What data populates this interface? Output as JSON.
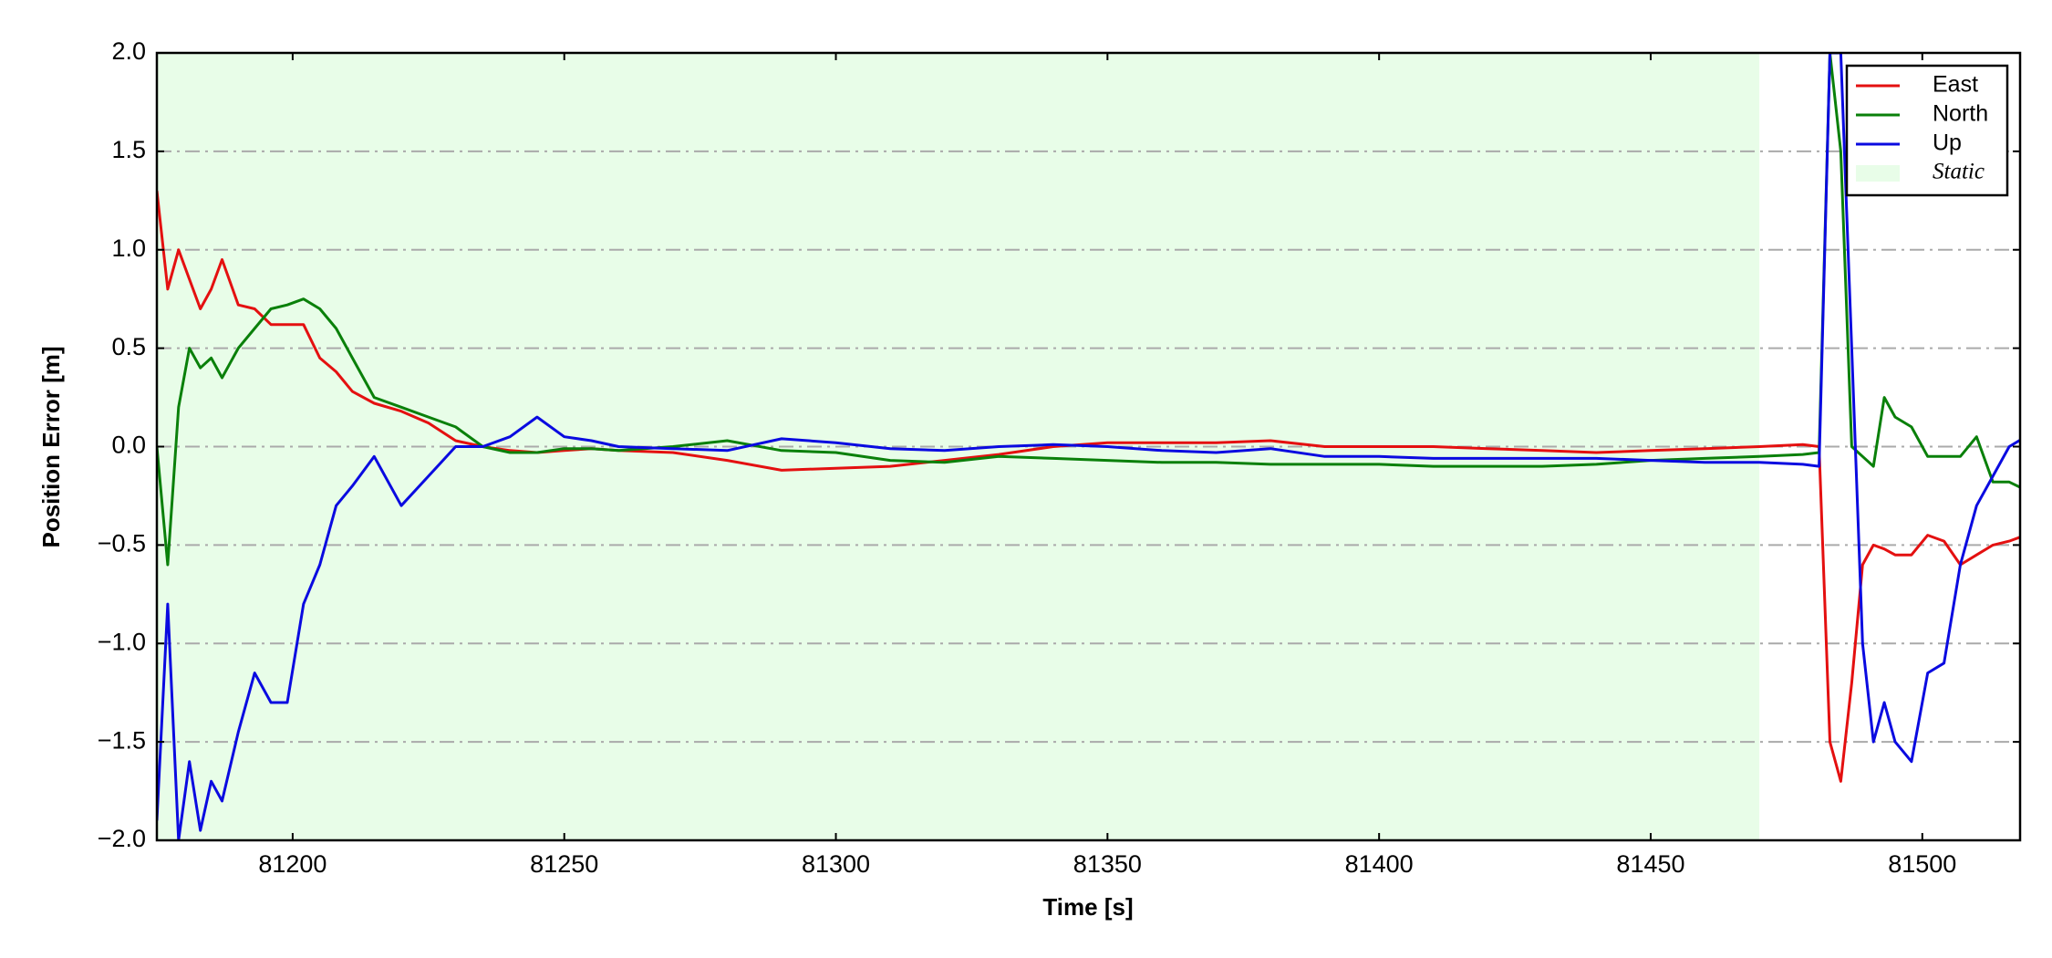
{
  "chart_data": {
    "type": "line",
    "xlabel": "Time [s]",
    "ylabel": "Position Error [m]",
    "x": [
      81175,
      81177,
      81179,
      81181,
      81183,
      81185,
      81187,
      81190,
      81193,
      81196,
      81199,
      81202,
      81205,
      81208,
      81211,
      81215,
      81220,
      81225,
      81230,
      81235,
      81240,
      81245,
      81250,
      81255,
      81260,
      81270,
      81280,
      81290,
      81300,
      81310,
      81320,
      81330,
      81340,
      81350,
      81360,
      81370,
      81380,
      81390,
      81400,
      81410,
      81420,
      81430,
      81440,
      81450,
      81460,
      81470,
      81478,
      81481,
      81483,
      81485,
      81487,
      81489,
      81491,
      81493,
      81495,
      81498,
      81501,
      81504,
      81507,
      81510,
      81513,
      81516,
      81519
    ],
    "series": [
      {
        "name": "East",
        "color": "#e41010",
        "values": [
          1.3,
          0.8,
          1.0,
          0.85,
          0.7,
          0.8,
          0.95,
          0.72,
          0.7,
          0.62,
          0.62,
          0.62,
          0.45,
          0.38,
          0.28,
          0.22,
          0.18,
          0.12,
          0.03,
          0.0,
          -0.02,
          -0.03,
          -0.02,
          -0.01,
          -0.02,
          -0.03,
          -0.07,
          -0.12,
          -0.11,
          -0.1,
          -0.07,
          -0.04,
          0.0,
          0.02,
          0.02,
          0.02,
          0.03,
          0.0,
          0.0,
          0.0,
          -0.01,
          -0.02,
          -0.03,
          -0.02,
          -0.01,
          0.0,
          0.01,
          0.0,
          -1.5,
          -1.7,
          -1.2,
          -0.6,
          -0.5,
          -0.52,
          -0.55,
          -0.55,
          -0.45,
          -0.48,
          -0.6,
          -0.55,
          -0.5,
          -0.48,
          -0.45
        ]
      },
      {
        "name": "North",
        "color": "#0a800a",
        "values": [
          0.0,
          -0.6,
          0.2,
          0.5,
          0.4,
          0.45,
          0.35,
          0.5,
          0.6,
          0.7,
          0.72,
          0.75,
          0.7,
          0.6,
          0.45,
          0.25,
          0.2,
          0.15,
          0.1,
          0.0,
          -0.03,
          -0.03,
          -0.01,
          -0.01,
          -0.02,
          0.0,
          0.03,
          -0.02,
          -0.03,
          -0.07,
          -0.08,
          -0.05,
          -0.06,
          -0.07,
          -0.08,
          -0.08,
          -0.09,
          -0.09,
          -0.09,
          -0.1,
          -0.1,
          -0.1,
          -0.09,
          -0.07,
          -0.06,
          -0.05,
          -0.04,
          -0.03,
          2.0,
          1.5,
          0.0,
          -0.05,
          -0.1,
          0.25,
          0.15,
          0.1,
          -0.05,
          -0.05,
          -0.05,
          0.05,
          -0.18,
          -0.18,
          -0.22
        ]
      },
      {
        "name": "Up",
        "color": "#0a0ae0",
        "values": [
          -1.9,
          -0.8,
          -2.0,
          -1.6,
          -1.95,
          -1.7,
          -1.8,
          -1.45,
          -1.15,
          -1.3,
          -1.3,
          -0.8,
          -0.6,
          -0.3,
          -0.2,
          -0.05,
          -0.3,
          -0.15,
          0.0,
          0.0,
          0.05,
          0.15,
          0.05,
          0.03,
          0.0,
          -0.01,
          -0.02,
          0.04,
          0.02,
          -0.01,
          -0.02,
          0.0,
          0.01,
          0.0,
          -0.02,
          -0.03,
          -0.01,
          -0.05,
          -0.05,
          -0.06,
          -0.06,
          -0.06,
          -0.06,
          -0.07,
          -0.08,
          -0.08,
          -0.09,
          -0.1,
          2.0,
          2.0,
          0.5,
          -1.0,
          -1.5,
          -1.3,
          -1.5,
          -1.6,
          -1.15,
          -1.1,
          -0.6,
          -0.3,
          -0.15,
          0.0,
          0.05
        ]
      }
    ],
    "regions": [
      {
        "name": "Static",
        "xlim": [
          81175,
          81470
        ],
        "color": "#e8fde8"
      }
    ],
    "xlim": [
      81175,
      81518
    ],
    "xticks": [
      81200,
      81250,
      81300,
      81350,
      81400,
      81450,
      81500
    ],
    "ylim": [
      -2.0,
      2.0
    ],
    "yticks": [
      {
        "value": -2.0,
        "label": "−2.0"
      },
      {
        "value": -1.5,
        "label": "−1.5"
      },
      {
        "value": -1.0,
        "label": "−1.0"
      },
      {
        "value": -0.5,
        "label": "−0.5"
      },
      {
        "value": 0,
        "label": "0.0"
      },
      {
        "value": 0.5,
        "label": "0.5"
      },
      {
        "value": 1.0,
        "label": "1.0"
      },
      {
        "value": 1.5,
        "label": "1.5"
      },
      {
        "value": 2.0,
        "label": "2.0"
      }
    ],
    "grid": true,
    "legend": "upper right"
  }
}
